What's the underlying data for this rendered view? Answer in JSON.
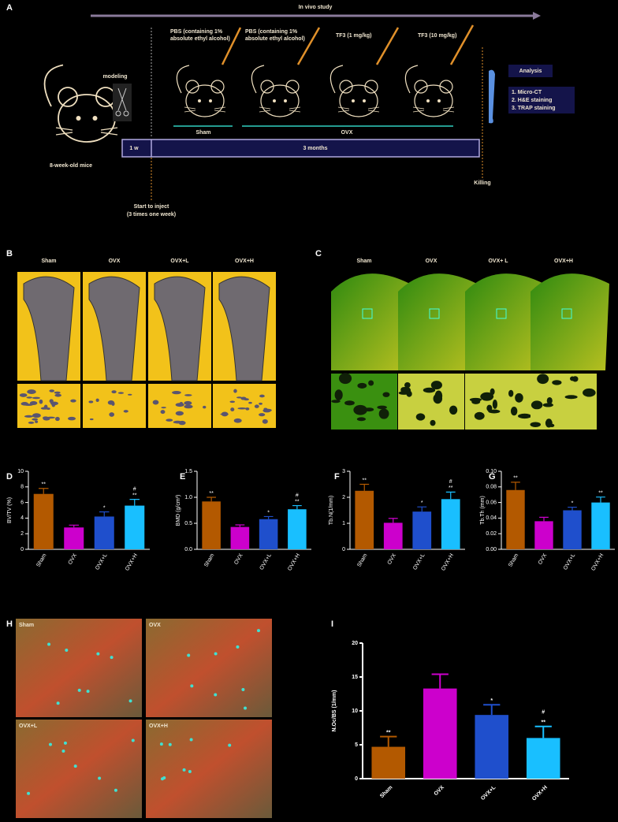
{
  "panel_letters": [
    "A",
    "B",
    "C",
    "D",
    "E",
    "F",
    "G",
    "H",
    "I"
  ],
  "diagram": {
    "timeline_title": "In vivo study",
    "modeling": "modeling",
    "start_label": "8-week-old mice",
    "treatments": [
      [
        "PBS (containing 1%",
        "absolute ethyl alcohol)"
      ],
      [
        "PBS (containing 1%",
        "absolute ethyl alcohol)"
      ],
      [
        "TF3 (1 mg/kg)"
      ],
      [
        "TF3 (10 mg/kg)"
      ]
    ],
    "group_labels": [
      "Sham",
      "OVX"
    ],
    "period_labels": [
      "1 w",
      "3 months"
    ],
    "inject": [
      "Start to inject",
      "(3 times one week)"
    ],
    "killing": "Killing",
    "analysis_title": "Analysis",
    "analysis_items": [
      "1. Micro-CT",
      "2. H&E staining",
      "3. TRAP staining"
    ]
  },
  "panel_b": {
    "labels": [
      "Sham",
      "OVX",
      "OVX+L",
      "OVX+H"
    ]
  },
  "panel_c": {
    "labels": [
      "Sham",
      "OVX",
      "OVX+ L",
      "OVX+H"
    ]
  },
  "panel_h": {
    "labels": [
      "Sham",
      "OVX",
      "OVX+L",
      "OVX+H"
    ]
  },
  "chart_data": [
    {
      "type": "bar",
      "ylabel": "BV/TV (%)",
      "categories": [
        "Sham",
        "OVX",
        "OVX+L",
        "OVX+H"
      ],
      "values": [
        7.1,
        2.8,
        4.2,
        5.6
      ],
      "errors": [
        0.7,
        0.3,
        0.6,
        0.8
      ],
      "annotations": [
        [
          "**"
        ],
        [],
        [
          "*"
        ],
        [
          "#",
          "**"
        ]
      ],
      "colors": [
        "#b35900",
        "#cc00cc",
        "#1f4fcc",
        "#19bfff"
      ],
      "ylim": [
        0,
        10
      ],
      "yticks": [
        0,
        2,
        4,
        6,
        8,
        10
      ]
    },
    {
      "type": "bar",
      "ylabel": "BMD (g/cm³)",
      "categories": [
        "Sham",
        "OVX",
        "OVX+L",
        "OVX+H"
      ],
      "values": [
        0.92,
        0.43,
        0.58,
        0.77
      ],
      "errors": [
        0.08,
        0.04,
        0.05,
        0.07
      ],
      "annotations": [
        [
          "**"
        ],
        [],
        [
          "*"
        ],
        [
          "#",
          "**"
        ]
      ],
      "colors": [
        "#b35900",
        "#cc00cc",
        "#1f4fcc",
        "#19bfff"
      ],
      "ylim": [
        0,
        1.5
      ],
      "yticks": [
        {
          "value": 0,
          "label": "0.0"
        },
        0.5,
        {
          "value": 1,
          "label": "1.0"
        },
        1.5
      ]
    },
    {
      "type": "bar",
      "ylabel": "Tb.N(1/mm)",
      "categories": [
        "Sham",
        "OVX",
        "OVX+L",
        "OVX+H"
      ],
      "values": [
        2.25,
        1.02,
        1.45,
        1.93
      ],
      "errors": [
        0.25,
        0.17,
        0.18,
        0.27
      ],
      "annotations": [
        [
          "**"
        ],
        [],
        [
          "*"
        ],
        [
          "#",
          "**"
        ]
      ],
      "colors": [
        "#b35900",
        "#cc00cc",
        "#1f4fcc",
        "#19bfff"
      ],
      "ylim": [
        0,
        3
      ],
      "yticks": [
        0,
        1,
        2,
        3
      ]
    },
    {
      "type": "bar",
      "ylabel": "Tb.Th (mm)",
      "categories": [
        "Sham",
        "OVX",
        "OVX+L",
        "OVX+H"
      ],
      "values": [
        0.076,
        0.036,
        0.05,
        0.06
      ],
      "errors": [
        0.01,
        0.005,
        0.004,
        0.007
      ],
      "annotations": [
        [
          "**"
        ],
        [],
        [
          "*"
        ],
        [
          "**"
        ]
      ],
      "colors": [
        "#b35900",
        "#cc00cc",
        "#1f4fcc",
        "#19bfff"
      ],
      "ylim": [
        0,
        0.1
      ],
      "yticks": [
        {
          "value": 0,
          "label": "0.00"
        },
        0.02,
        0.04,
        0.06,
        0.08,
        {
          "value": 0.1,
          "label": "0.10"
        }
      ]
    },
    {
      "type": "bar",
      "ylabel": "N.Oc/BS (1/mm)",
      "categories": [
        "Sham",
        "OVX",
        "OVX+L",
        "OVX+H"
      ],
      "values": [
        4.7,
        13.3,
        9.4,
        6.0
      ],
      "errors": [
        1.5,
        2.1,
        1.5,
        1.7
      ],
      "annotations": [
        [
          "**"
        ],
        [],
        [
          "*"
        ],
        [
          "#",
          "**"
        ]
      ],
      "colors": [
        "#b35900",
        "#cc00cc",
        "#1f4fcc",
        "#19bfff"
      ],
      "ylim": [
        0,
        20
      ],
      "yticks": [
        0,
        5,
        10,
        15,
        20
      ]
    }
  ]
}
